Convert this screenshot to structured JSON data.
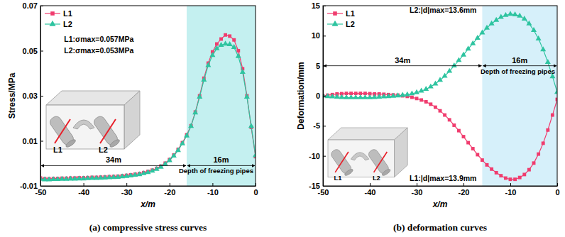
{
  "chart_data": [
    {
      "type": "line",
      "title": "(a) compressive stress curves",
      "x_label": "x/m",
      "y_label": "Stress/MPa",
      "x": [
        -50,
        -49,
        -48,
        -47,
        -46,
        -45,
        -44,
        -43,
        -42,
        -41,
        -40,
        -39,
        -38,
        -37,
        -36,
        -35,
        -34,
        -33,
        -32,
        -31,
        -30,
        -29,
        -28,
        -27,
        -26,
        -25,
        -24,
        -23,
        -22,
        -21,
        -20,
        -19,
        -18,
        -17,
        -16,
        -15,
        -14,
        -13,
        -12,
        -11,
        -10,
        -9,
        -8,
        -7,
        -6,
        -5,
        -4,
        -3,
        -2,
        -1,
        0
      ],
      "series": [
        {
          "name": "L1",
          "color": "#f03c6e",
          "marker": "square",
          "values": [
            -0.0065,
            -0.0068,
            -0.0068,
            -0.0067,
            -0.0067,
            -0.0066,
            -0.0066,
            -0.0065,
            -0.0065,
            -0.0064,
            -0.0064,
            -0.0063,
            -0.0062,
            -0.0062,
            -0.0061,
            -0.006,
            -0.0059,
            -0.0058,
            -0.0057,
            -0.0055,
            -0.0053,
            -0.0051,
            -0.0048,
            -0.0045,
            -0.0041,
            -0.0036,
            -0.003,
            -0.0022,
            -0.0012,
            0.0001,
            0.0017,
            0.0037,
            0.0062,
            0.0092,
            0.0127,
            0.0167,
            0.0228,
            0.03,
            0.0378,
            0.0445,
            0.0495,
            0.053,
            0.0552,
            0.057,
            0.0565,
            0.0548,
            0.05,
            0.042,
            0.03,
            0.016,
            0.003
          ]
        },
        {
          "name": "L2",
          "color": "#2ec4a0",
          "marker": "triangle",
          "values": [
            -0.007,
            -0.0072,
            -0.0072,
            -0.0071,
            -0.0071,
            -0.007,
            -0.007,
            -0.0069,
            -0.0069,
            -0.0068,
            -0.0068,
            -0.0067,
            -0.0066,
            -0.0066,
            -0.0065,
            -0.0064,
            -0.0063,
            -0.0062,
            -0.0061,
            -0.0059,
            -0.0057,
            -0.0055,
            -0.0052,
            -0.0049,
            -0.0045,
            -0.004,
            -0.0034,
            -0.0026,
            -0.0016,
            -0.0003,
            0.0013,
            0.0033,
            0.0058,
            0.0088,
            0.0122,
            0.0165,
            0.0225,
            0.0295,
            0.037,
            0.0435,
            0.048,
            0.051,
            0.0525,
            0.053,
            0.0528,
            0.0515,
            0.0475,
            0.0405,
            0.0295,
            0.0165,
            0.0035
          ]
        }
      ],
      "xlim": [
        -50,
        0
      ],
      "xticks": [
        -50,
        -40,
        -30,
        -20,
        -10,
        0
      ],
      "ylim": [
        -0.01,
        0.07
      ],
      "yticks": [
        -0.01,
        0.01,
        0.03,
        0.05,
        0.07
      ],
      "legend": "upper left",
      "shaded": {
        "range": [
          -16,
          0
        ],
        "color": "#c4f0f0"
      },
      "spans": [
        {
          "label": "34m",
          "range": [
            -50,
            -16
          ],
          "y": -0.001
        },
        {
          "label": "16m",
          "note": "Depth of freezing pipes",
          "range": [
            -16,
            0
          ],
          "y": -0.001
        }
      ],
      "annotations": [
        {
          "text": "L1:σmax=0.057MPa",
          "x": -44.5,
          "y": 0.054
        },
        {
          "text": "L2:σmax=0.053MPa",
          "x": -44.5,
          "y": 0.049
        }
      ],
      "inset": {
        "labels": [
          "L1",
          "L2"
        ]
      }
    },
    {
      "type": "line",
      "title": "(b) deformation curves",
      "x_label": "x/m",
      "y_label": "Deformation/mm",
      "x": [
        -50,
        -49,
        -48,
        -47,
        -46,
        -45,
        -44,
        -43,
        -42,
        -41,
        -40,
        -39,
        -38,
        -37,
        -36,
        -35,
        -34,
        -33,
        -32,
        -31,
        -30,
        -29,
        -28,
        -27,
        -26,
        -25,
        -24,
        -23,
        -22,
        -21,
        -20,
        -19,
        -18,
        -17,
        -16,
        -15,
        -14,
        -13,
        -12,
        -11,
        -10,
        -9,
        -8,
        -7,
        -6,
        -5,
        -4,
        -3,
        -2,
        -1,
        0
      ],
      "series": [
        {
          "name": "L1",
          "color": "#f03c6e",
          "marker": "square",
          "values": [
            0,
            0.1,
            0.2,
            0.3,
            0.35,
            0.4,
            0.4,
            0.4,
            0.4,
            0.4,
            0.35,
            0.3,
            0.3,
            0.25,
            0.2,
            0.15,
            0.1,
            0,
            -0.1,
            -0.25,
            -0.45,
            -0.7,
            -1,
            -1.4,
            -1.9,
            -2.5,
            -3.2,
            -4,
            -4.9,
            -5.8,
            -6.8,
            -7.8,
            -8.8,
            -9.8,
            -10.7,
            -11.5,
            -12.2,
            -12.8,
            -13.3,
            -13.7,
            -13.9,
            -13.9,
            -13.6,
            -13.1,
            -12.3,
            -11.2,
            -9.7,
            -7.9,
            -5.7,
            -3.2,
            -0.6
          ]
        },
        {
          "name": "L2",
          "color": "#2ec4a0",
          "marker": "triangle",
          "values": [
            0,
            -0.1,
            -0.15,
            -0.2,
            -0.25,
            -0.3,
            -0.3,
            -0.3,
            -0.3,
            -0.3,
            -0.3,
            -0.25,
            -0.2,
            -0.15,
            -0.1,
            -0.05,
            0,
            0.1,
            0.2,
            0.35,
            0.55,
            0.8,
            1.1,
            1.5,
            2,
            2.6,
            3.3,
            4.1,
            5,
            5.9,
            6.8,
            7.8,
            8.7,
            9.6,
            10.5,
            11.3,
            12,
            12.6,
            13.1,
            13.4,
            13.6,
            13.5,
            13.3,
            12.8,
            12,
            10.9,
            9.5,
            7.7,
            5.6,
            3.2,
            0.6
          ]
        }
      ],
      "xlim": [
        -50,
        0
      ],
      "xticks": [
        -50,
        -40,
        -30,
        -20,
        -10,
        0
      ],
      "ylim": [
        -15,
        15
      ],
      "yticks": [
        -15,
        -10,
        -5,
        0,
        5,
        10,
        15
      ],
      "legend": "upper left",
      "shaded": {
        "range": [
          -16,
          0
        ],
        "color": "#d6f0fa"
      },
      "spans": [
        {
          "label": "34m",
          "range": [
            -50,
            -16
          ],
          "y": 5
        },
        {
          "label": "16m",
          "note": "Depth of freezing pipes",
          "range": [
            -16,
            0
          ],
          "y": 5
        }
      ],
      "annotations": [
        {
          "text": "L2:|d|max=13.6mm",
          "x": -31.5,
          "y": 13.8
        },
        {
          "text": "L1:|d|max=13.9mm",
          "x": -31.5,
          "y": -14.2
        }
      ],
      "inset": {
        "labels": [
          "L1",
          "L2"
        ]
      }
    }
  ]
}
